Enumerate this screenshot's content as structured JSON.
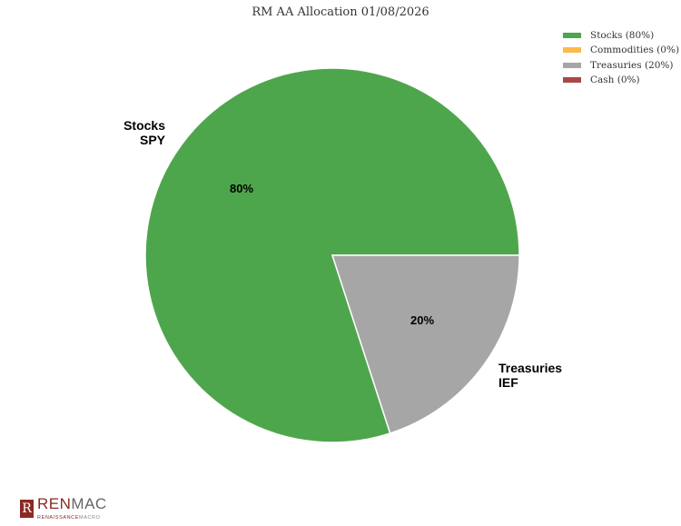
{
  "chart_data": {
    "type": "pie",
    "title": "RM AA Allocation 01/08/2026",
    "slices": [
      {
        "name": "Stocks (80%)",
        "value": 80,
        "color": "#4ea64c",
        "label": [
          "Stocks",
          "SPY"
        ],
        "pct_label": "80%"
      },
      {
        "name": "Commodities (0%)",
        "value": 0,
        "color": "#fcba4e"
      },
      {
        "name": "Treasuries (20%)",
        "value": 20,
        "color": "#a6a6a6",
        "label": [
          "Treasuries",
          "IEF"
        ],
        "pct_label": "20%"
      },
      {
        "name": "Cash (0%)",
        "value": 0,
        "color": "#a94846"
      }
    ],
    "legend_position": "top-right"
  },
  "logo": {
    "main_a": "REN",
    "main_b": "MAC",
    "sub_a": "RENAISSANCE",
    "sub_b": "MACRO",
    "mark": "R"
  }
}
